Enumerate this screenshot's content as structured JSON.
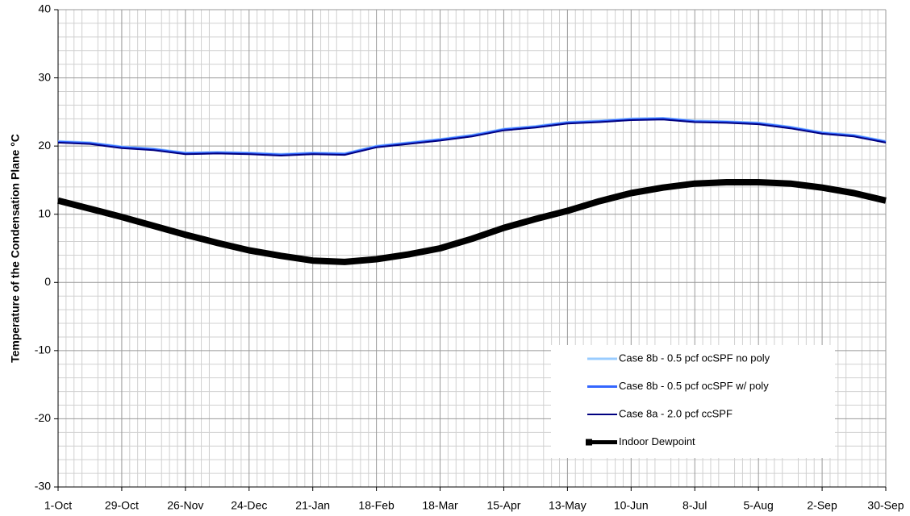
{
  "chart_data": {
    "type": "line",
    "y_label": "Temperature of the Condensation Plane °C",
    "categories": [
      "1-Oct",
      null,
      "29-Oct",
      null,
      "26-Nov",
      null,
      "24-Dec",
      null,
      "21-Jan",
      null,
      "18-Feb",
      null,
      "18-Mar",
      null,
      "15-Apr",
      null,
      "13-May",
      null,
      "10-Jun",
      null,
      "8-Jul",
      null,
      "5-Aug",
      null,
      "2-Sep",
      null,
      "30-Sep"
    ],
    "series": [
      {
        "name": "Case 8b - 0.5 pcf ocSPF no poly",
        "color": "#99ccff",
        "width": 3,
        "values": [
          20.7,
          20.5,
          19.9,
          19.6,
          19.0,
          19.1,
          19.0,
          18.8,
          19.0,
          18.9,
          20.0,
          20.5,
          21.0,
          21.6,
          22.5,
          22.9,
          23.5,
          23.7,
          24.0,
          24.1,
          23.7,
          23.6,
          23.4,
          22.8,
          22.0,
          21.6,
          20.7
        ]
      },
      {
        "name": "Case 8b - 0.5 pcf ocSPF w/ poly",
        "color": "#3366ff",
        "width": 3,
        "values": [
          20.6,
          20.4,
          19.8,
          19.5,
          18.9,
          19.0,
          18.9,
          18.7,
          18.9,
          18.8,
          19.9,
          20.4,
          20.9,
          21.5,
          22.4,
          22.8,
          23.4,
          23.6,
          23.9,
          24.0,
          23.6,
          23.5,
          23.3,
          22.7,
          21.9,
          21.5,
          20.6
        ]
      },
      {
        "name": "Case 8a - 2.0 pcf ccSPF",
        "color": "#000080",
        "width": 2,
        "values": [
          20.5,
          20.3,
          19.7,
          19.4,
          18.8,
          18.9,
          18.8,
          18.6,
          18.8,
          18.7,
          19.8,
          20.3,
          20.8,
          21.4,
          22.3,
          22.7,
          23.3,
          23.5,
          23.8,
          23.9,
          23.5,
          23.4,
          23.2,
          22.6,
          21.8,
          21.4,
          20.5
        ]
      },
      {
        "name": "Indoor Dewpoint",
        "color": "#000000",
        "width": 8,
        "values": [
          12.0,
          10.8,
          9.6,
          8.3,
          7.0,
          5.8,
          4.7,
          3.9,
          3.2,
          3.0,
          3.4,
          4.1,
          5.0,
          6.4,
          8.0,
          9.3,
          10.5,
          11.9,
          13.1,
          13.9,
          14.5,
          14.7,
          14.7,
          14.5,
          13.9,
          13.1,
          12.0
        ]
      }
    ],
    "ylim": [
      -30,
      40
    ],
    "yticks": [
      -30,
      -20,
      -10,
      0,
      10,
      20,
      30,
      40
    ],
    "grid": true,
    "legend": "lower right"
  }
}
